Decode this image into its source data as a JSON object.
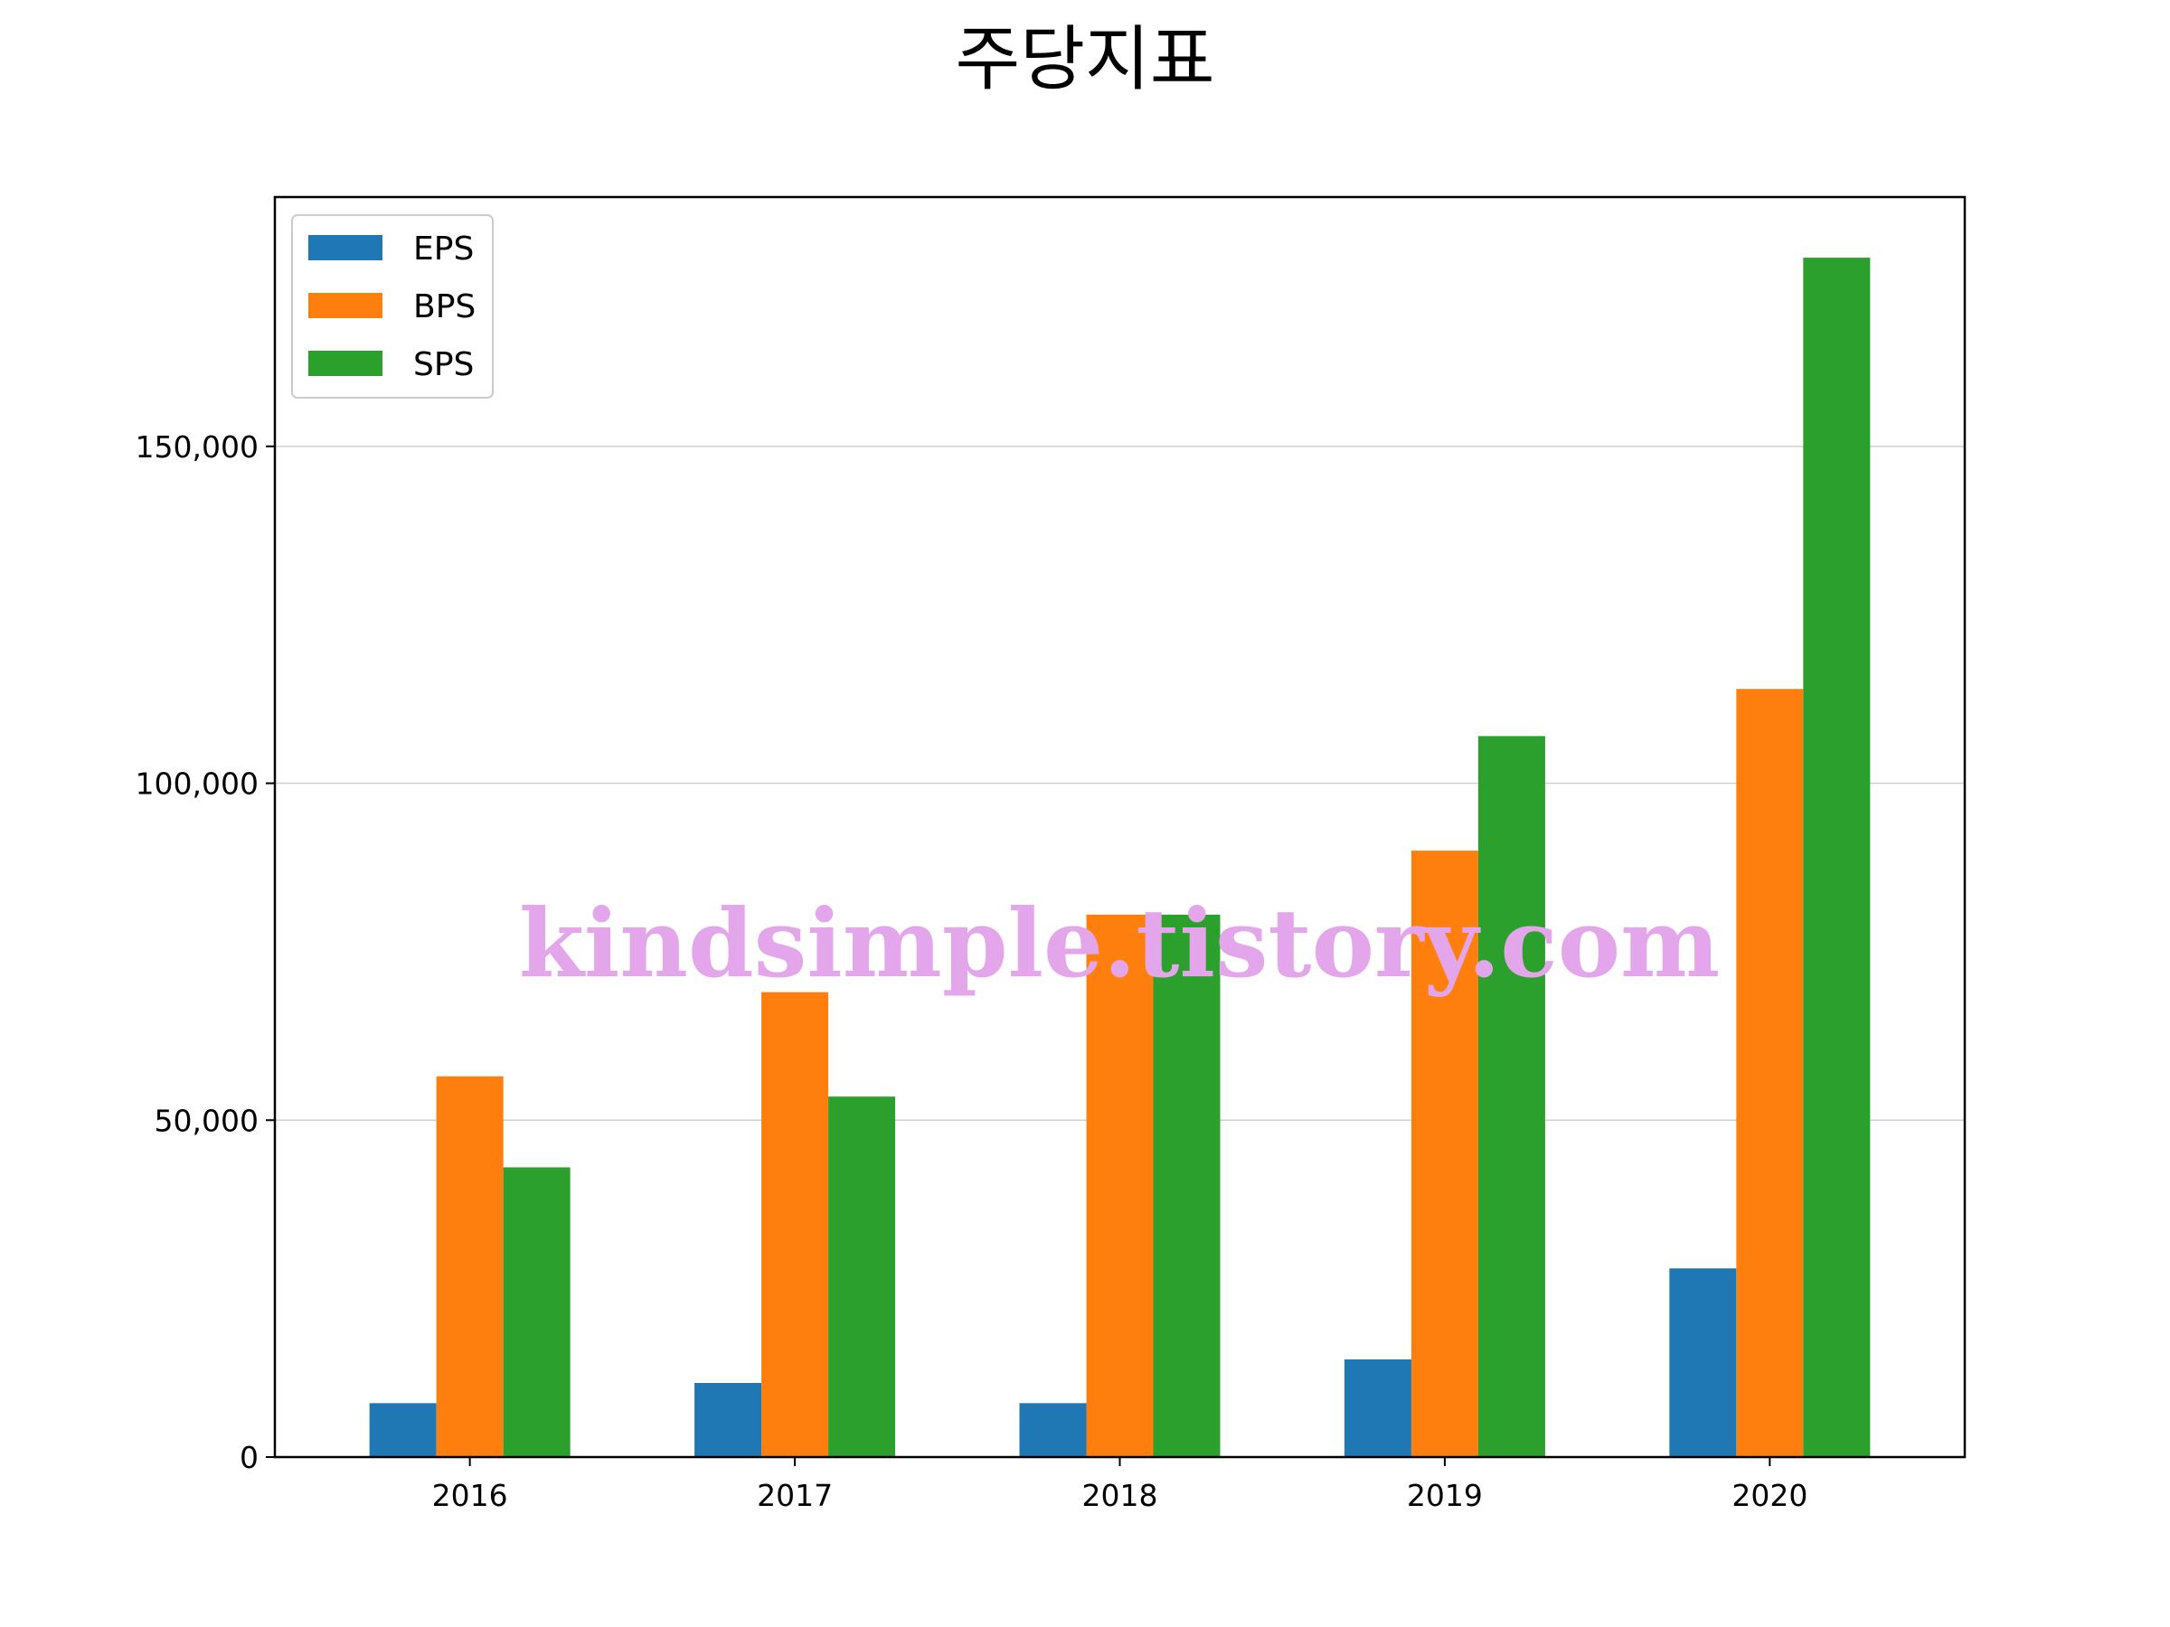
{
  "chart_data": {
    "type": "bar",
    "title": "주당지표",
    "xlabel": "",
    "ylabel": "",
    "categories": [
      "2016",
      "2017",
      "2018",
      "2019",
      "2020"
    ],
    "series": [
      {
        "name": "EPS",
        "color": "#1f77b4",
        "values": [
          8000,
          11000,
          8000,
          14500,
          28000
        ]
      },
      {
        "name": "BPS",
        "color": "#ff7f0e",
        "values": [
          56500,
          69000,
          80500,
          90000,
          114000
        ]
      },
      {
        "name": "SPS",
        "color": "#2ca02c",
        "values": [
          43000,
          53500,
          80500,
          107000,
          178000
        ]
      }
    ],
    "ylim": [
      0,
      187000
    ],
    "yticks": [
      0,
      50000,
      100000,
      150000
    ],
    "ytick_labels": [
      "0",
      "50,000",
      "100,000",
      "150,000"
    ],
    "grid": "y",
    "legend_position": "top-left"
  },
  "watermark": {
    "text": "kindsimple.tistory.com",
    "color": "#e4a6ea"
  }
}
